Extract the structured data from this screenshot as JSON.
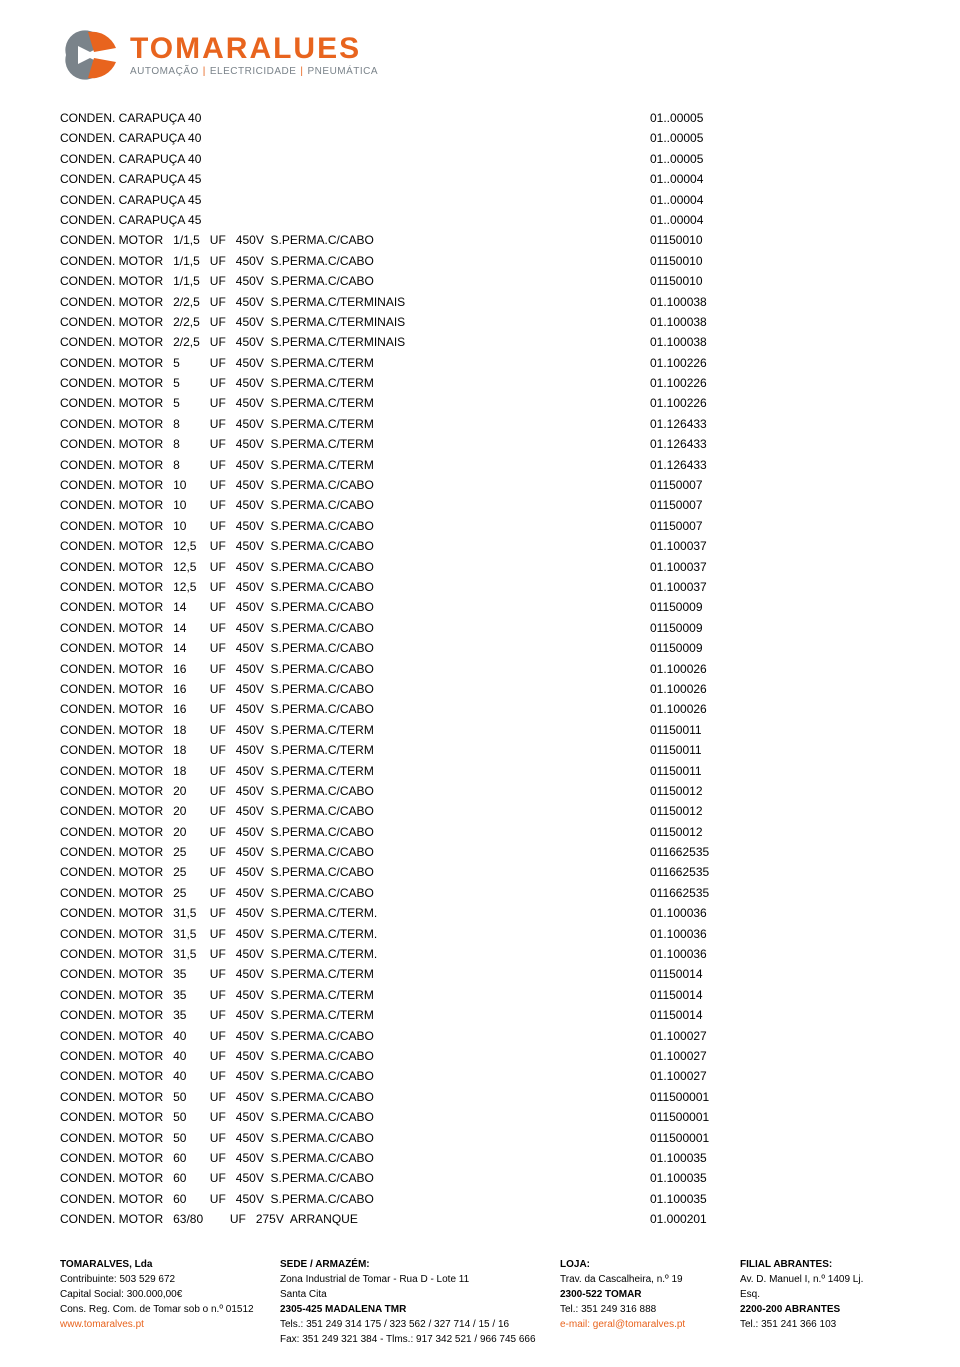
{
  "logo": {
    "brand": "TOMARALUES",
    "tag1": "AUTOMAÇÃO",
    "tag2": "ELECTRICIDADE",
    "tag3": "PNEUMÁTICA",
    "colors": {
      "orange": "#e8641e",
      "gray": "#7a838a"
    }
  },
  "rows": [
    {
      "desc": "CONDEN. CARAPUÇA 40",
      "code": "01..00005"
    },
    {
      "desc": "CONDEN. CARAPUÇA 40",
      "code": "01..00005"
    },
    {
      "desc": "CONDEN. CARAPUÇA 40",
      "code": "01..00005"
    },
    {
      "desc": "CONDEN. CARAPUÇA 45",
      "code": "01..00004"
    },
    {
      "desc": "CONDEN. CARAPUÇA 45",
      "code": "01..00004"
    },
    {
      "desc": "CONDEN. CARAPUÇA 45",
      "code": "01..00004"
    },
    {
      "desc": "CONDEN. MOTOR   1/1,5   UF   450V  S.PERMA.C/CABO",
      "code": "01150010"
    },
    {
      "desc": "CONDEN. MOTOR   1/1,5   UF   450V  S.PERMA.C/CABO",
      "code": "01150010"
    },
    {
      "desc": "CONDEN. MOTOR   1/1,5   UF   450V  S.PERMA.C/CABO",
      "code": "01150010"
    },
    {
      "desc": "CONDEN. MOTOR   2/2,5   UF   450V  S.PERMA.C/TERMINAIS",
      "code": "01.100038"
    },
    {
      "desc": "CONDEN. MOTOR   2/2,5   UF   450V  S.PERMA.C/TERMINAIS",
      "code": "01.100038"
    },
    {
      "desc": "CONDEN. MOTOR   2/2,5   UF   450V  S.PERMA.C/TERMINAIS",
      "code": "01.100038"
    },
    {
      "desc": "CONDEN. MOTOR   5         UF   450V  S.PERMA.C/TERM",
      "code": "01.100226"
    },
    {
      "desc": "CONDEN. MOTOR   5         UF   450V  S.PERMA.C/TERM",
      "code": "01.100226"
    },
    {
      "desc": "CONDEN. MOTOR   5         UF   450V  S.PERMA.C/TERM",
      "code": "01.100226"
    },
    {
      "desc": "CONDEN. MOTOR   8         UF   450V  S.PERMA.C/TERM",
      "code": "01.126433"
    },
    {
      "desc": "CONDEN. MOTOR   8         UF   450V  S.PERMA.C/TERM",
      "code": "01.126433"
    },
    {
      "desc": "CONDEN. MOTOR   8         UF   450V  S.PERMA.C/TERM",
      "code": "01.126433"
    },
    {
      "desc": "CONDEN. MOTOR   10       UF   450V  S.PERMA.C/CABO",
      "code": "01150007"
    },
    {
      "desc": "CONDEN. MOTOR   10       UF   450V  S.PERMA.C/CABO",
      "code": "01150007"
    },
    {
      "desc": "CONDEN. MOTOR   10       UF   450V  S.PERMA.C/CABO",
      "code": "01150007"
    },
    {
      "desc": "CONDEN. MOTOR   12,5    UF   450V  S.PERMA.C/CABO",
      "code": "01.100037"
    },
    {
      "desc": "CONDEN. MOTOR   12,5    UF   450V  S.PERMA.C/CABO",
      "code": "01.100037"
    },
    {
      "desc": "CONDEN. MOTOR   12,5    UF   450V  S.PERMA.C/CABO",
      "code": "01.100037"
    },
    {
      "desc": "CONDEN. MOTOR   14       UF   450V  S.PERMA.C/CABO",
      "code": "01150009"
    },
    {
      "desc": "CONDEN. MOTOR   14       UF   450V  S.PERMA.C/CABO",
      "code": "01150009"
    },
    {
      "desc": "CONDEN. MOTOR   14       UF   450V  S.PERMA.C/CABO",
      "code": "01150009"
    },
    {
      "desc": "CONDEN. MOTOR   16       UF   450V  S.PERMA.C/CABO",
      "code": "01.100026"
    },
    {
      "desc": "CONDEN. MOTOR   16       UF   450V  S.PERMA.C/CABO",
      "code": "01.100026"
    },
    {
      "desc": "CONDEN. MOTOR   16       UF   450V  S.PERMA.C/CABO",
      "code": "01.100026"
    },
    {
      "desc": "CONDEN. MOTOR   18       UF   450V  S.PERMA.C/TERM",
      "code": "01150011"
    },
    {
      "desc": "CONDEN. MOTOR   18       UF   450V  S.PERMA.C/TERM",
      "code": "01150011"
    },
    {
      "desc": "CONDEN. MOTOR   18       UF   450V  S.PERMA.C/TERM",
      "code": "01150011"
    },
    {
      "desc": "CONDEN. MOTOR   20       UF   450V  S.PERMA.C/CABO",
      "code": "01150012"
    },
    {
      "desc": "CONDEN. MOTOR   20       UF   450V  S.PERMA.C/CABO",
      "code": "01150012"
    },
    {
      "desc": "CONDEN. MOTOR   20       UF   450V  S.PERMA.C/CABO",
      "code": "01150012"
    },
    {
      "desc": "CONDEN. MOTOR   25       UF   450V  S.PERMA.C/CABO",
      "code": "011662535"
    },
    {
      "desc": "CONDEN. MOTOR   25       UF   450V  S.PERMA.C/CABO",
      "code": "011662535"
    },
    {
      "desc": "CONDEN. MOTOR   25       UF   450V  S.PERMA.C/CABO",
      "code": "011662535"
    },
    {
      "desc": "CONDEN. MOTOR   31,5    UF   450V  S.PERMA.C/TERM.",
      "code": "01.100036"
    },
    {
      "desc": "CONDEN. MOTOR   31,5    UF   450V  S.PERMA.C/TERM.",
      "code": "01.100036"
    },
    {
      "desc": "CONDEN. MOTOR   31,5    UF   450V  S.PERMA.C/TERM.",
      "code": "01.100036"
    },
    {
      "desc": "CONDEN. MOTOR   35       UF   450V  S.PERMA.C/TERM",
      "code": "01150014"
    },
    {
      "desc": "CONDEN. MOTOR   35       UF   450V  S.PERMA.C/TERM",
      "code": "01150014"
    },
    {
      "desc": "CONDEN. MOTOR   35       UF   450V  S.PERMA.C/TERM",
      "code": "01150014"
    },
    {
      "desc": "CONDEN. MOTOR   40       UF   450V  S.PERMA.C/CABO",
      "code": "01.100027"
    },
    {
      "desc": "CONDEN. MOTOR   40       UF   450V  S.PERMA.C/CABO",
      "code": "01.100027"
    },
    {
      "desc": "CONDEN. MOTOR   40       UF   450V  S.PERMA.C/CABO",
      "code": "01.100027"
    },
    {
      "desc": "CONDEN. MOTOR   50       UF   450V  S.PERMA.C/CABO",
      "code": "011500001"
    },
    {
      "desc": "CONDEN. MOTOR   50       UF   450V  S.PERMA.C/CABO",
      "code": "011500001"
    },
    {
      "desc": "CONDEN. MOTOR   50       UF   450V  S.PERMA.C/CABO",
      "code": "011500001"
    },
    {
      "desc": "CONDEN. MOTOR   60       UF   450V  S.PERMA.C/CABO",
      "code": "01.100035"
    },
    {
      "desc": "CONDEN. MOTOR   60       UF   450V  S.PERMA.C/CABO",
      "code": "01.100035"
    },
    {
      "desc": "CONDEN. MOTOR   60       UF   450V  S.PERMA.C/CABO",
      "code": "01.100035"
    },
    {
      "desc": "CONDEN. MOTOR   63/80        UF   275V  ARRANQUE",
      "code": "01.000201"
    }
  ],
  "footer": {
    "col1": {
      "l1": "TOMARALVES, Lda",
      "l2": "Contribuinte: 503 529 672",
      "l3": "Capital Social: 300.000,00€",
      "l4": "Cons. Reg. Com. de Tomar sob o n.º 01512",
      "l5": "www.tomaralves.pt"
    },
    "col2": {
      "l1": "SEDE / ARMAZÉM:",
      "l2": "Zona Industrial de Tomar - Rua D - Lote 11",
      "l3": "Santa Cita",
      "l4": "2305-425 MADALENA TMR",
      "l5": "Tels.: 351 249 314 175 / 323 562 / 327 714 / 15 / 16",
      "l6": "Fax: 351 249 321 384 - Tlms.: 917 342 521 / 966 745 666"
    },
    "col3": {
      "l1": "LOJA:",
      "l2": "Trav. da Cascalheira, n.º 19",
      "l3": "2300-522 TOMAR",
      "l4": "Tel.: 351 249 316 888",
      "l5": "e-mail: geral@tomaralves.pt"
    },
    "col4": {
      "l1": "FILIAL ABRANTES:",
      "l2": "Av. D. Manuel I, n.º 1409 Lj.",
      "l3": "Esq.",
      "l4": "2200-200 ABRANTES",
      "l5": "Tel.: 351 241 366 103"
    }
  }
}
